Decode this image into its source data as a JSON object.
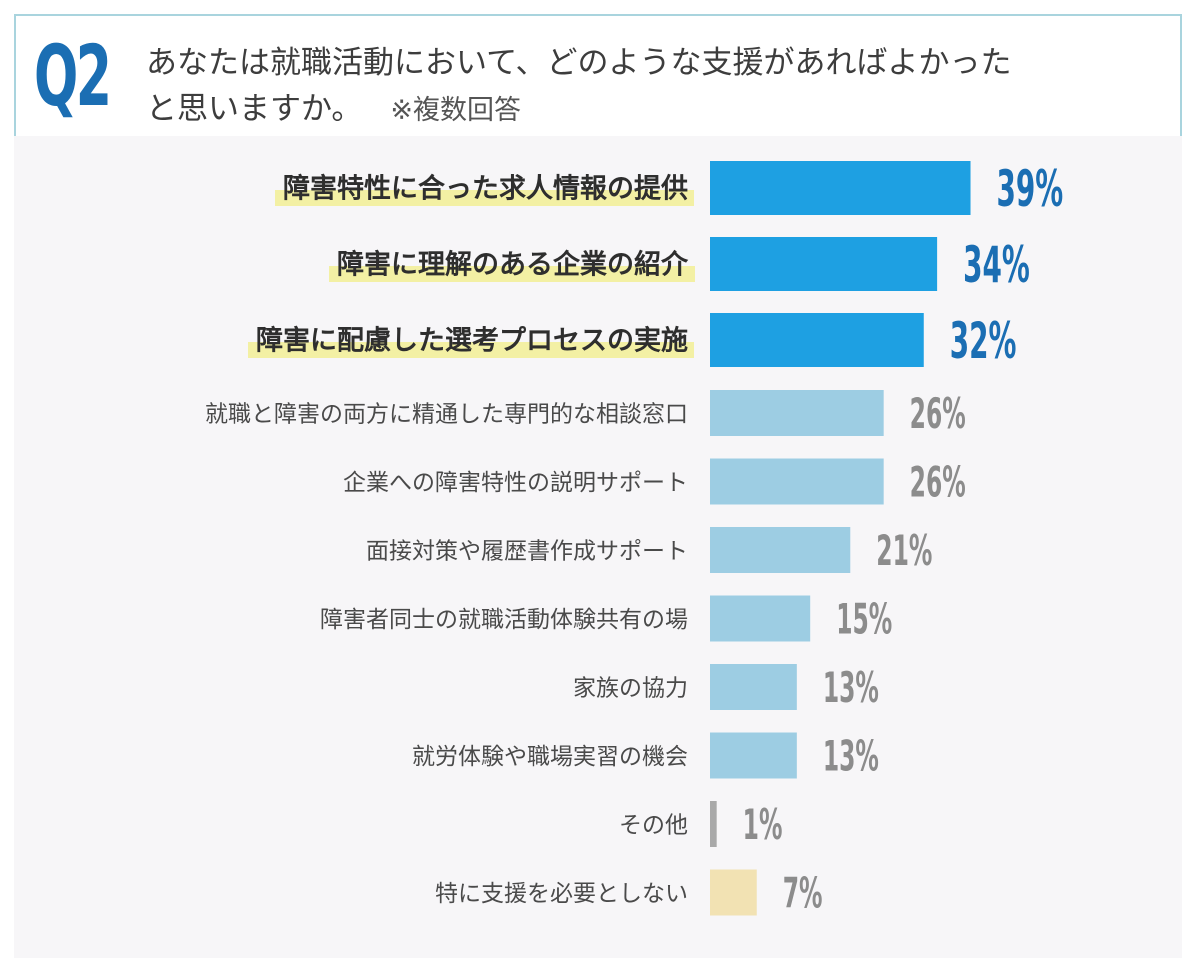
{
  "header": {
    "badge": "Q2",
    "question_line1": "あなたは就職活動において、どのような支援があればよかった",
    "question_line2": "と思いますか。",
    "note": "※複数回答"
  },
  "chart_data": {
    "type": "bar",
    "orientation": "horizontal",
    "categories": [
      "障害特性に合った求人情報の提供",
      "障害に理解のある企業の紹介",
      "障害に配慮した選考プロセスの実施",
      "就職と障害の両方に精通した専門的な相談窓口",
      "企業への障害特性の説明サポート",
      "面接対策や履歴書作成サポート",
      "障害者同士の就職活動体験共有の場",
      "家族の協力",
      "就労体験や職場実習の機会",
      "その他",
      "特に支援を必要としない"
    ],
    "values": [
      39,
      34,
      32,
      26,
      26,
      21,
      15,
      13,
      13,
      1,
      7
    ],
    "value_labels": [
      "39%",
      "34%",
      "32%",
      "26%",
      "26%",
      "21%",
      "15%",
      "13%",
      "13%",
      "1%",
      "7%"
    ],
    "highlighted_top": 3,
    "colors": {
      "top_bar": "#1ea0e2",
      "top_value": "#1b6eb3",
      "bar": "#9dcde3",
      "value": "#8c8c8c",
      "other_bar": "#a9a9a9",
      "none_bar": "#f2e2b3",
      "highlight": "#f3f0a4",
      "label_top": "#2e2e2e",
      "label": "#4a4a4a"
    }
  }
}
